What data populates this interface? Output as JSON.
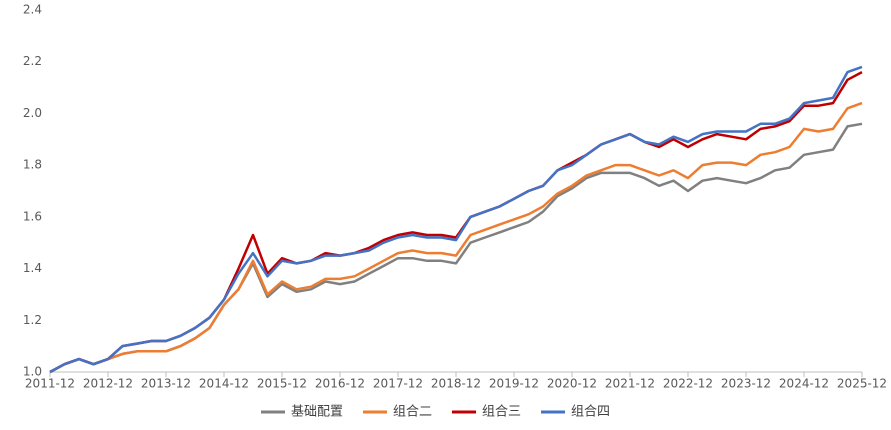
{
  "chart_data": {
    "type": "line",
    "categories": [
      "2011-12",
      null,
      null,
      null,
      "2012-12",
      null,
      null,
      null,
      "2013-12",
      null,
      null,
      null,
      "2014-12",
      null,
      null,
      null,
      "2015-12",
      null,
      null,
      null,
      "2016-12",
      null,
      null,
      null,
      "2017-12",
      null,
      null,
      null,
      "2018-12",
      null,
      null,
      null,
      "2019-12",
      null,
      null,
      null,
      "2020-12",
      null,
      null,
      null,
      "2021-12",
      null,
      null,
      null,
      "2022-12",
      null,
      null,
      null,
      "2023-12",
      null,
      null,
      null,
      "2024-12",
      null,
      null,
      null,
      "2025-12"
    ],
    "series": [
      {
        "name": "基础配置",
        "color": "#808080",
        "values": [
          1.0,
          1.03,
          1.05,
          1.03,
          1.05,
          1.07,
          1.08,
          1.08,
          1.08,
          1.1,
          1.13,
          1.17,
          1.26,
          1.32,
          1.42,
          1.29,
          1.34,
          1.31,
          1.32,
          1.35,
          1.34,
          1.35,
          1.38,
          1.41,
          1.44,
          1.44,
          1.43,
          1.43,
          1.42,
          1.5,
          1.52,
          1.54,
          1.56,
          1.58,
          1.62,
          1.68,
          1.71,
          1.75,
          1.77,
          1.77,
          1.77,
          1.75,
          1.72,
          1.74,
          1.7,
          1.74,
          1.75,
          1.74,
          1.73,
          1.75,
          1.78,
          1.79,
          1.84,
          1.85,
          1.86,
          1.95,
          1.96
        ]
      },
      {
        "name": "组合二",
        "color": "#ed7d31",
        "values": [
          1.0,
          1.03,
          1.05,
          1.03,
          1.05,
          1.07,
          1.08,
          1.08,
          1.08,
          1.1,
          1.13,
          1.17,
          1.26,
          1.32,
          1.43,
          1.3,
          1.35,
          1.32,
          1.33,
          1.36,
          1.36,
          1.37,
          1.4,
          1.43,
          1.46,
          1.47,
          1.46,
          1.46,
          1.45,
          1.53,
          1.55,
          1.57,
          1.59,
          1.61,
          1.64,
          1.69,
          1.72,
          1.76,
          1.78,
          1.8,
          1.8,
          1.78,
          1.76,
          1.78,
          1.75,
          1.8,
          1.81,
          1.81,
          1.8,
          1.84,
          1.85,
          1.87,
          1.94,
          1.93,
          1.94,
          2.02,
          2.04
        ]
      },
      {
        "name": "组合三",
        "color": "#c00000",
        "values": [
          1.0,
          1.03,
          1.05,
          1.03,
          1.05,
          1.1,
          1.11,
          1.12,
          1.12,
          1.14,
          1.17,
          1.21,
          1.28,
          1.4,
          1.53,
          1.38,
          1.44,
          1.42,
          1.43,
          1.46,
          1.45,
          1.46,
          1.48,
          1.51,
          1.53,
          1.54,
          1.53,
          1.53,
          1.52,
          1.6,
          1.62,
          1.64,
          1.67,
          1.7,
          1.72,
          1.78,
          1.81,
          1.84,
          1.88,
          1.9,
          1.92,
          1.89,
          1.87,
          1.9,
          1.87,
          1.9,
          1.92,
          1.91,
          1.9,
          1.94,
          1.95,
          1.97,
          2.03,
          2.03,
          2.04,
          2.13,
          2.16
        ]
      },
      {
        "name": "组合四",
        "color": "#4472c4",
        "values": [
          1.0,
          1.03,
          1.05,
          1.03,
          1.05,
          1.1,
          1.11,
          1.12,
          1.12,
          1.14,
          1.17,
          1.21,
          1.28,
          1.38,
          1.46,
          1.37,
          1.43,
          1.42,
          1.43,
          1.45,
          1.45,
          1.46,
          1.47,
          1.5,
          1.52,
          1.53,
          1.52,
          1.52,
          1.51,
          1.6,
          1.62,
          1.64,
          1.67,
          1.7,
          1.72,
          1.78,
          1.8,
          1.84,
          1.88,
          1.9,
          1.92,
          1.89,
          1.88,
          1.91,
          1.89,
          1.92,
          1.93,
          1.93,
          1.93,
          1.96,
          1.96,
          1.98,
          2.04,
          2.05,
          2.06,
          2.16,
          2.18
        ]
      }
    ],
    "ylim": [
      1.0,
      2.4
    ],
    "yticks": [
      {
        "value": 1.0,
        "label": "1.0"
      },
      1.2,
      1.4,
      1.6,
      1.8,
      {
        "value": 2.0,
        "label": "2.0"
      },
      2.2,
      2.4
    ],
    "grid": false,
    "legend": "bottom"
  }
}
